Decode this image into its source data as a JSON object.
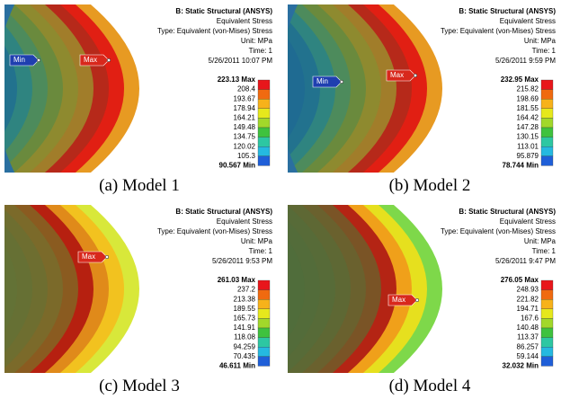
{
  "panels": [
    {
      "header": [
        "B: Static Structural (ANSYS)",
        "Equivalent Stress",
        "Type: Equivalent (von-Mises) Stress",
        "Unit: MPa",
        "Time: 1",
        "5/26/2011 10:07 PM"
      ],
      "legend": [
        "223.13 Max",
        "208.4",
        "193.67",
        "178.94",
        "164.21",
        "149.48",
        "134.75",
        "120.02",
        "105.3",
        "90.567 Min"
      ],
      "markers": [
        "Min",
        "Max"
      ],
      "caption": "(a) Model 1"
    },
    {
      "header": [
        "B: Static Structural (ANSYS)",
        "Equivalent Stress",
        "Type: Equivalent (von-Mises) Stress",
        "Unit: MPa",
        "Time: 1",
        "5/26/2011 9:59 PM"
      ],
      "legend": [
        "232.95 Max",
        "215.82",
        "198.69",
        "181.55",
        "164.42",
        "147.28",
        "130.15",
        "113.01",
        "95.879",
        "78.744 Min"
      ],
      "markers": [
        "Min",
        "Max"
      ],
      "caption": "(b) Model 2"
    },
    {
      "header": [
        "B: Static Structural (ANSYS)",
        "Equivalent Stress",
        "Type: Equivalent (von-Mises) Stress",
        "Unit: MPa",
        "Time: 1",
        "5/26/2011 9:53 PM"
      ],
      "legend": [
        "261.03 Max",
        "237.2",
        "213.38",
        "189.55",
        "165.73",
        "141.91",
        "118.08",
        "94.259",
        "70.435",
        "46.611 Min"
      ],
      "markers": [
        "Max"
      ],
      "caption": "(c) Model 3"
    },
    {
      "header": [
        "B: Static Structural (ANSYS)",
        "Equivalent Stress",
        "Type: Equivalent (von-Mises) Stress",
        "Unit: MPa",
        "Time: 1",
        "5/26/2011 9:47 PM"
      ],
      "legend": [
        "276.05 Max",
        "248.93",
        "221.82",
        "194.71",
        "167.6",
        "140.48",
        "113.37",
        "86.257",
        "59.144",
        "32.032 Min"
      ],
      "markers": [
        "Max"
      ],
      "caption": "(d) Model 4"
    }
  ]
}
